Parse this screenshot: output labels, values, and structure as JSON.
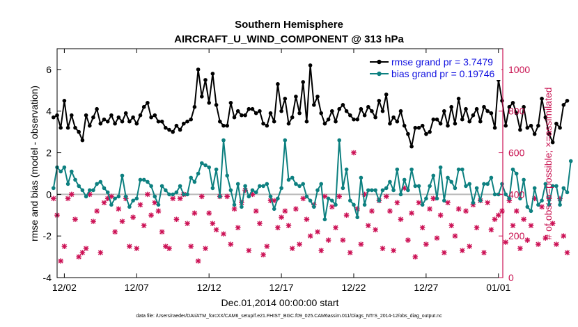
{
  "chart_data": {
    "type": "line",
    "title": "Southern Hemisphere",
    "subtitle": "AIRCRAFT_U_WIND_COMPONENT @ 313 hPa",
    "xlabel": "Dec.01,2014 00:00:00 start",
    "ylabel_left": "rmse and bias (model - observation)",
    "ylabel_right": "# of obs: o=possible; ×=assimilated",
    "ylim_left": [
      -4,
      7
    ],
    "ylim_right": [
      0,
      1100
    ],
    "xlim_days": [
      0.5,
      31.3
    ],
    "x_ticks": [
      {
        "day": 1,
        "label": "12/02"
      },
      {
        "day": 6,
        "label": "12/07"
      },
      {
        "day": 11,
        "label": "12/12"
      },
      {
        "day": 16,
        "label": "12/17"
      },
      {
        "day": 21,
        "label": "12/22"
      },
      {
        "day": 26,
        "label": "12/27"
      },
      {
        "day": 31,
        "label": "01/01"
      }
    ],
    "y_ticks_left": [
      -4,
      -2,
      0,
      2,
      4,
      6
    ],
    "y_ticks_right": [
      0,
      200,
      400,
      600,
      800,
      1000
    ],
    "zero_line": 0,
    "legend_position": "top-right",
    "colors": {
      "rmse": "#000000",
      "bias": "#0d8080",
      "obs": "#cc1155",
      "zero": "#bbbbbb",
      "legend_text": "#1010e0"
    },
    "series": [
      {
        "name": "rmse grand pr = 3.7479",
        "axis": "left",
        "step_days": 0.25,
        "values": [
          3.7,
          3.8,
          3.2,
          4.5,
          3.2,
          3.8,
          3.2,
          3.0,
          2.6,
          3.8,
          3.3,
          3.7,
          4.1,
          3.4,
          3.6,
          3.5,
          3.8,
          3.4,
          3.7,
          3.5,
          3.9,
          3.5,
          3.7,
          3.4,
          3.8,
          4.2,
          4.4,
          3.7,
          3.8,
          3.5,
          3.5,
          3.2,
          3.1,
          3.0,
          3.3,
          3.1,
          3.4,
          3.5,
          3.6,
          4.2,
          6.0,
          4.7,
          5.5,
          4.4,
          5.8,
          4.3,
          3.5,
          3.3,
          3.3,
          4.4,
          3.7,
          4.0,
          3.8,
          3.8,
          4.1,
          4.1,
          3.9,
          4.0,
          3.4,
          3.3,
          3.9,
          3.5,
          5.3,
          4.0,
          4.6,
          3.4,
          3.7,
          4.7,
          3.9,
          5.4,
          3.5,
          6.2,
          4.3,
          4.7,
          3.9,
          3.4,
          3.6,
          4.0,
          3.5,
          4.1,
          4.3,
          4.0,
          3.8,
          3.6,
          3.6,
          4.1,
          3.8,
          4.2,
          4.0,
          3.7,
          4.5,
          4.0,
          4.8,
          3.4,
          3.7,
          3.5,
          4.0,
          3.3,
          2.9,
          2.3,
          3.2,
          3.2,
          3.3,
          2.9,
          3.0,
          3.6,
          3.6,
          3.4,
          4.0,
          3.3,
          4.2,
          3.4,
          4.6,
          3.6,
          4.1,
          3.5,
          3.8,
          4.1,
          3.5,
          4.2,
          4.0,
          3.9,
          3.2,
          5.5,
          4.5,
          3.3,
          4.2,
          4.4,
          3.9,
          3.1,
          4.2,
          3.2,
          3.3,
          2.9,
          3.3,
          4.6,
          3.7,
          2.9,
          2.5,
          3.4,
          3.2,
          4.3,
          4.5
        ]
      },
      {
        "name": "bias grand pr = 0.19746",
        "axis": "left",
        "step_days": 0.25,
        "values": [
          0.3,
          1.3,
          1.1,
          1.3,
          0.5,
          1.1,
          0.7,
          0.4,
          0.2,
          -0.1,
          0.2,
          0.2,
          0.5,
          0.6,
          0.3,
          0.1,
          -0.5,
          -0.2,
          -0.1,
          0.9,
          -0.1,
          -0.6,
          -0.3,
          -0.2,
          0.7,
          0.7,
          0.6,
          0.4,
          -0.1,
          -0.5,
          0.4,
          0.2,
          0.0,
          0.0,
          0.1,
          0.4,
          0.0,
          0.0,
          0.8,
          0.6,
          1.0,
          1.5,
          1.4,
          1.3,
          0.3,
          1.2,
          -0.1,
          2.6,
          0.9,
          0.2,
          -0.5,
          0.5,
          -0.6,
          0.4,
          -0.1,
          0.2,
          0.1,
          0.4,
          0.4,
          0.5,
          -0.1,
          -0.7,
          -0.2,
          0.3,
          2.6,
          0.7,
          0.8,
          0.5,
          0.4,
          0.5,
          -0.1,
          -0.3,
          -0.6,
          0.2,
          0.5,
          -1.2,
          -0.2,
          -0.3,
          -0.5,
          2.6,
          0.3,
          1.2,
          -0.3,
          -0.5,
          -1.1,
          0.8,
          -0.5,
          0.2,
          0.2,
          0.2,
          -0.3,
          0.2,
          0.3,
          0.6,
          0.2,
          1.2,
          0.0,
          0.7,
          0.2,
          1.2,
          0.4,
          0.4,
          -0.5,
          -0.2,
          0.4,
          0.9,
          -0.2,
          1.3,
          -0.3,
          0.8,
          0.6,
          0.3,
          1.2,
          1.2,
          0.4,
          0.5,
          -0.4,
          0.3,
          -0.3,
          0.5,
          0.5,
          0.8,
          0.0,
          0.0,
          0.5,
          0.0,
          -0.2,
          1.2,
          1.0,
          -0.2,
          0.7,
          -0.6,
          -0.8,
          0.3,
          -0.5,
          -0.3,
          0.5,
          -0.5,
          0.4,
          0.4,
          -0.5,
          0.3,
          0.1,
          1.6
        ]
      },
      {
        "name": "observations possible / assimilated",
        "axis": "right",
        "step_days": 0.25,
        "values": [
          380,
          300,
          80,
          150,
          380,
          400,
          280,
          100,
          120,
          140,
          400,
          270,
          320,
          120,
          360,
          380,
          390,
          220,
          330,
          270,
          380,
          150,
          290,
          140,
          350,
          250,
          400,
          300,
          360,
          320,
          220,
          150,
          140,
          380,
          280,
          380,
          400,
          260,
          150,
          310,
          80,
          390,
          140,
          310,
          260,
          230,
          390,
          210,
          390,
          160,
          330,
          240,
          360,
          420,
          130,
          400,
          320,
          260,
          110,
          150,
          370,
          370,
          240,
          290,
          320,
          250,
          140,
          330,
          160,
          380,
          280,
          200,
          350,
          220,
          130,
          390,
          180,
          340,
          240,
          390,
          180,
          300,
          120,
          600,
          330,
          160,
          400,
          250,
          320,
          230,
          370,
          140,
          390,
          320,
          130,
          360,
          280,
          430,
          180,
          310,
          100,
          360,
          240,
          160,
          330,
          380,
          190,
          300,
          120,
          360,
          250,
          200,
          330,
          130,
          320,
          150,
          350,
          240,
          370,
          120,
          360,
          230,
          280,
          300,
          320,
          170,
          370,
          250,
          320,
          140,
          280,
          180,
          250,
          380,
          160,
          340,
          190,
          380,
          260,
          160,
          380,
          200,
          120
        ]
      }
    ],
    "footnote": "data file: /Users/raeder/DAI/ATM_forcXX/CAM6_setup/f.e21.FHIST_BGC.f09_025.CAM6assim.011/Diags_NTrS_2014-12/obs_diag_output.nc"
  }
}
